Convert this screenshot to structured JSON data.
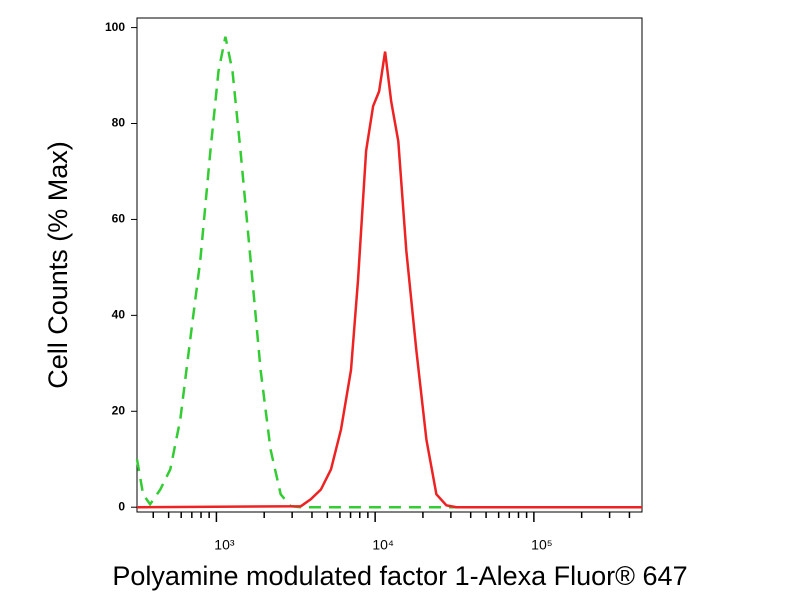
{
  "chart_data": {
    "type": "line",
    "xlabel": "Polyamine modulated factor 1-Alexa Fluor® 647",
    "ylabel": "Cell Counts (% Max)",
    "xscale": "log",
    "xlim": [
      316,
      480000
    ],
    "ylim": [
      -1,
      102
    ],
    "xticks": [
      {
        "value": 1000,
        "label": "10³"
      },
      {
        "value": 10000,
        "label": "10⁴"
      },
      {
        "value": 100000,
        "label": "10⁵"
      }
    ],
    "xminorticks": [
      400,
      500,
      600,
      700,
      800,
      900,
      2000,
      3000,
      4000,
      5000,
      6000,
      7000,
      8000,
      9000,
      20000,
      30000,
      40000,
      50000,
      60000,
      70000,
      80000,
      90000,
      200000,
      300000,
      400000
    ],
    "yticks": [
      0,
      20,
      40,
      60,
      80,
      100
    ],
    "series": [
      {
        "color": "#33cc33",
        "dash": true,
        "x": [
          316,
          345,
          382,
          443,
          512,
          592,
          684,
          792,
          916,
          1030,
          1140,
          1263,
          1418,
          1641,
          1897,
          2196,
          2541,
          2938,
          3400,
          480000
        ],
        "values": [
          10,
          2.7,
          0.6,
          3.7,
          7.9,
          18.3,
          34.9,
          51.5,
          74.3,
          90.9,
          98.1,
          90.9,
          74.3,
          51.5,
          28.6,
          12,
          2.7,
          0.2,
          0,
          0
        ]
      },
      {
        "color": "#ee2222",
        "dash": false,
        "x": [
          316,
          3404,
          3936,
          4550,
          5272,
          6095,
          7047,
          7800,
          8770,
          9710,
          10590,
          11560,
          12620,
          13990,
          15710,
          18160,
          21020,
          24310,
          28120,
          32580,
          480000
        ],
        "values": [
          0,
          0.2,
          1.7,
          3.7,
          7.9,
          16.2,
          28.6,
          47.3,
          74.3,
          83.6,
          86.7,
          95,
          84.6,
          76.3,
          53.5,
          32.8,
          14.1,
          2.7,
          0.4,
          0,
          0
        ]
      }
    ]
  }
}
